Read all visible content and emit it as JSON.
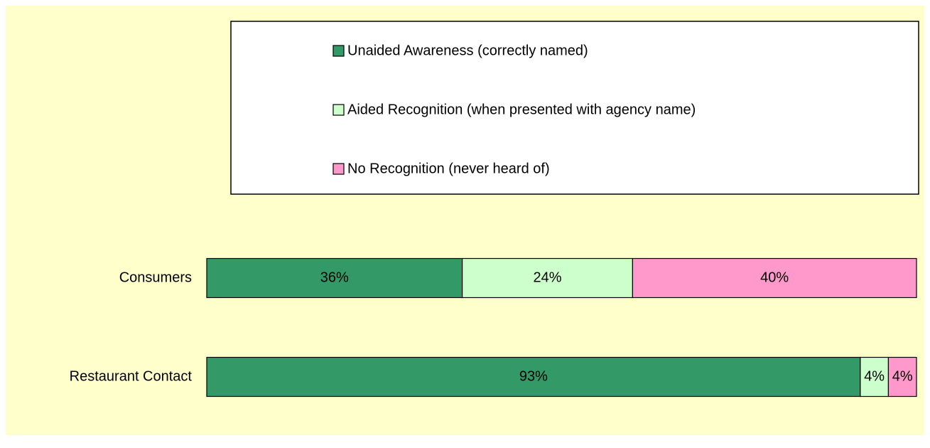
{
  "chart_data": {
    "type": "bar",
    "orientation": "horizontal",
    "stacked": "percent",
    "categories": [
      "Consumers",
      "Restaurant Contact"
    ],
    "series": [
      {
        "name": "Unaided Awareness (correctly named)",
        "color": "#339966",
        "values": [
          36,
          93
        ],
        "value_labels": [
          "36%",
          "93%"
        ]
      },
      {
        "name": "Aided Recognition (when presented with agency name)",
        "color": "#ccffcc",
        "values": [
          24,
          4
        ],
        "value_labels": [
          "24%",
          "4%"
        ]
      },
      {
        "name": "No Recognition (never heard of)",
        "color": "#ff99cc",
        "values": [
          40,
          4
        ],
        "value_labels": [
          "40%",
          "4%"
        ]
      }
    ],
    "legend": "top"
  }
}
